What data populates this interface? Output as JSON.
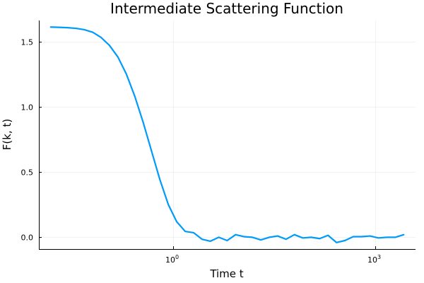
{
  "chart_data": {
    "type": "line",
    "title": "Intermediate Scattering Function",
    "xlabel": "Time t",
    "ylabel": "F(k, t)",
    "x_scale": "log10",
    "xlim": [
      0.01,
      4000
    ],
    "ylim": [
      -0.09,
      1.66
    ],
    "x_ticks": [
      {
        "value": 1,
        "base": "10",
        "exponent": "0"
      },
      {
        "value": 1000,
        "base": "10",
        "exponent": "3"
      }
    ],
    "y_ticks": [
      {
        "value": 0,
        "label": "0.0"
      },
      {
        "value": 0.5,
        "label": "0.5"
      },
      {
        "value": 1,
        "label": "1.0"
      },
      {
        "value": 1.5,
        "label": "1.5"
      }
    ],
    "grid": true,
    "legend": false,
    "colors": {
      "series": "#009AFA",
      "axis": "#000000"
    },
    "series": [
      {
        "x": [
          0.015,
          0.02,
          0.0267,
          0.0356,
          0.0474,
          0.0632,
          0.0843,
          0.112,
          0.15,
          0.2,
          0.267,
          0.356,
          0.474,
          0.632,
          0.843,
          1.12,
          1.5,
          2.0,
          2.67,
          3.56,
          4.74,
          6.32,
          8.43,
          11.2,
          15.0,
          20.0,
          26.7,
          35.6,
          47.4,
          63.2,
          84.3,
          112,
          150,
          200,
          267,
          356,
          474,
          632,
          843,
          1120,
          1500,
          2000,
          2670
        ],
        "y": [
          1.61,
          1.608,
          1.605,
          1.6,
          1.59,
          1.57,
          1.53,
          1.47,
          1.38,
          1.25,
          1.08,
          0.88,
          0.66,
          0.44,
          0.25,
          0.12,
          0.045,
          0.035,
          -0.015,
          -0.03,
          0.0,
          -0.025,
          0.02,
          0.005,
          0.0,
          -0.02,
          0.0,
          0.01,
          -0.015,
          0.02,
          -0.005,
          0.0,
          -0.01,
          0.015,
          -0.04,
          -0.025,
          0.005,
          0.005,
          0.01,
          -0.005,
          0.0,
          0.0,
          0.02
        ]
      }
    ]
  }
}
